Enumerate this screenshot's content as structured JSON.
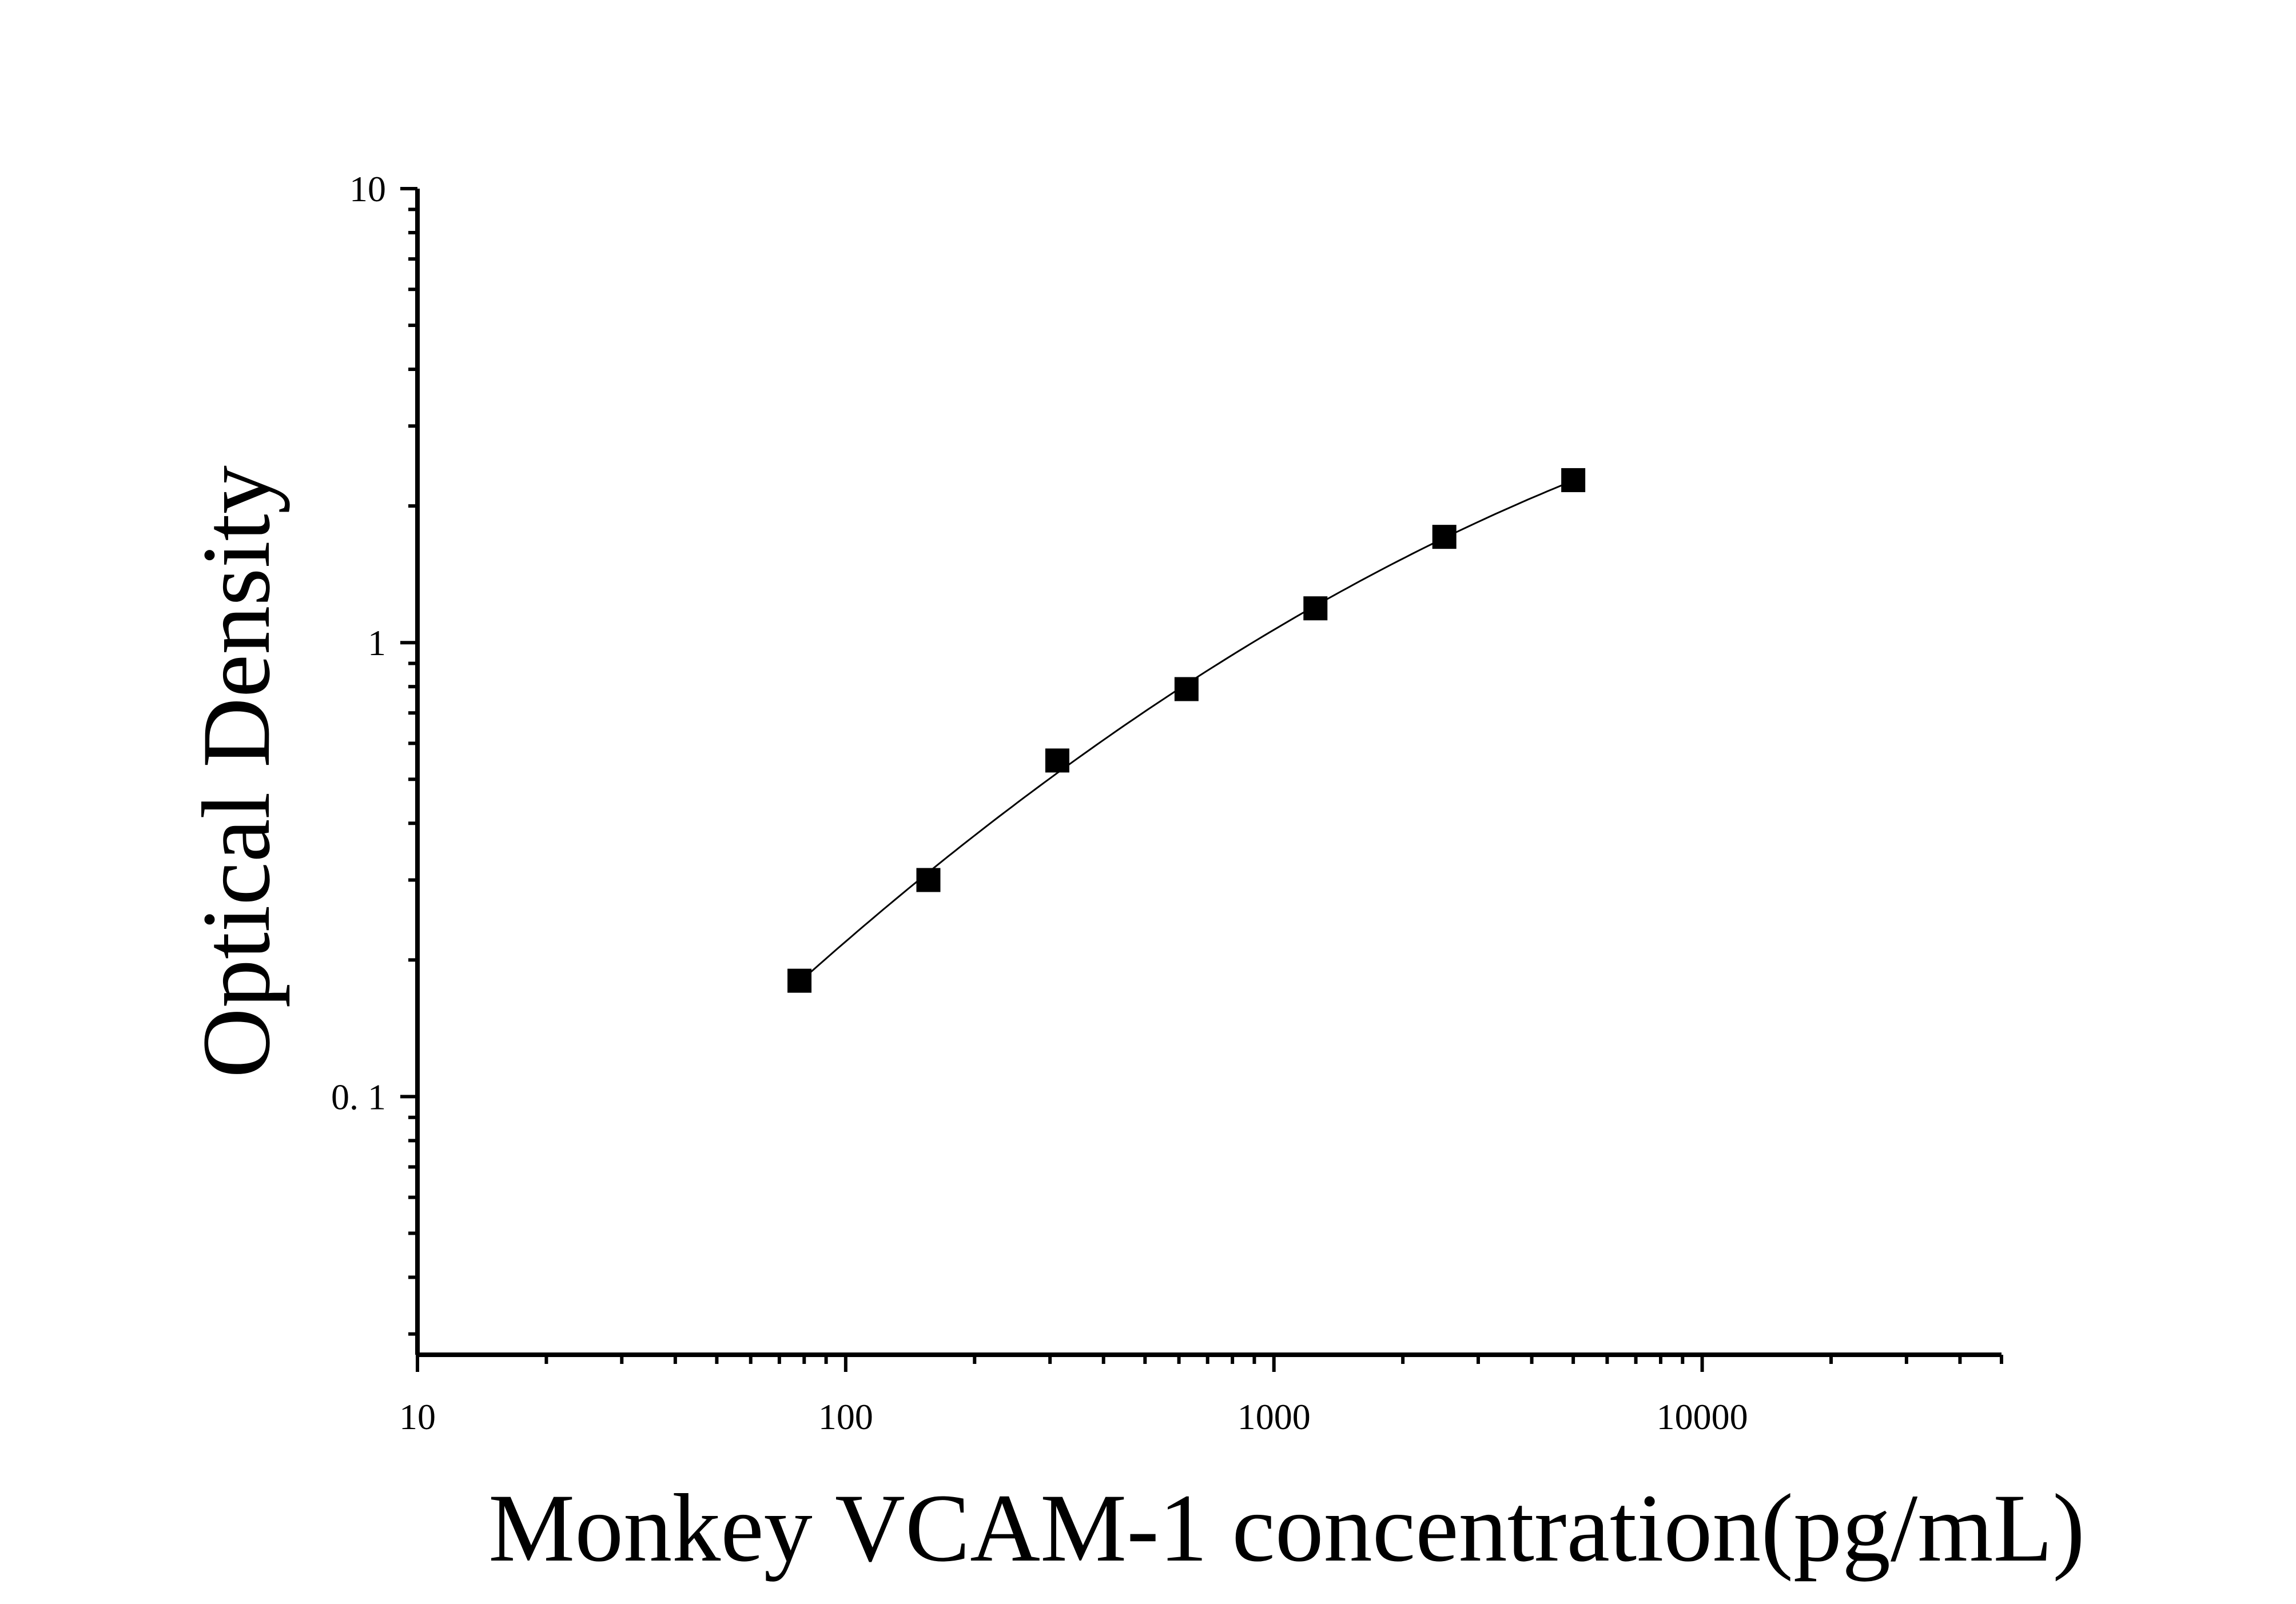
{
  "chart_data": {
    "type": "scatter",
    "xlabel": "Monkey VCAM-1 concentration(pg/mL)",
    "ylabel": "Optical Density",
    "x_scale": "log",
    "y_scale": "log",
    "xlim": [
      10,
      50000
    ],
    "ylim": [
      0.027,
      10
    ],
    "x_tick_labels": [
      {
        "value": 10,
        "label": "10"
      },
      {
        "value": 100,
        "label": "100"
      },
      {
        "value": 1000,
        "label": "1000"
      },
      {
        "value": 10000,
        "label": "10000"
      }
    ],
    "y_tick_labels": [
      {
        "value": 10,
        "label": "10"
      },
      {
        "value": 1,
        "label": "1"
      },
      {
        "value": 0.1,
        "label": "0. 1"
      }
    ],
    "grid": false,
    "legend": "none",
    "series": [
      {
        "marker": "square",
        "fit_curve": true,
        "x": [
          78,
          156,
          312,
          625,
          1250,
          2500,
          5000
        ],
        "y": [
          0.18,
          0.3,
          0.55,
          0.79,
          1.19,
          1.71,
          2.28
        ]
      }
    ],
    "colors": {
      "marker": "#000000",
      "line": "#000000"
    }
  }
}
